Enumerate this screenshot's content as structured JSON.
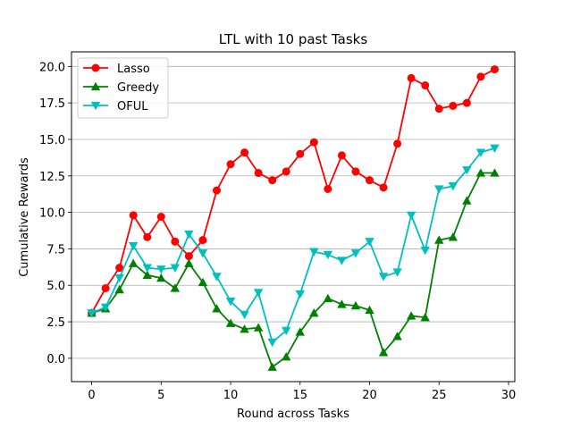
{
  "chart_data": {
    "type": "line",
    "title": "LTL with 10 past Tasks",
    "xlabel": "Round across Tasks",
    "ylabel": "Cumulative Rewards",
    "xlim": [
      -1.45,
      30.45
    ],
    "ylim": [
      -1.6,
      21.0
    ],
    "xticks": [
      0,
      5,
      10,
      15,
      20,
      25,
      30
    ],
    "yticks": [
      0.0,
      2.5,
      5.0,
      7.5,
      10.0,
      12.5,
      15.0,
      17.5,
      20.0
    ],
    "ytick_labels": [
      "0.0",
      "2.5",
      "5.0",
      "7.5",
      "10.0",
      "12.5",
      "15.0",
      "17.5",
      "20.0"
    ],
    "grid": "horizontal",
    "legend_position": "upper-left",
    "x": [
      0,
      1,
      2,
      3,
      4,
      5,
      6,
      7,
      8,
      9,
      10,
      11,
      12,
      13,
      14,
      15,
      16,
      17,
      18,
      19,
      20,
      21,
      22,
      23,
      24,
      25,
      26,
      27,
      28,
      29
    ],
    "series": [
      {
        "name": "Lasso",
        "color": "#ff0000",
        "marker": "circle",
        "values": [
          3.1,
          4.8,
          6.2,
          9.8,
          8.3,
          9.7,
          8.0,
          7.0,
          8.1,
          11.5,
          13.3,
          14.1,
          12.7,
          12.2,
          12.8,
          14.0,
          14.8,
          11.6,
          13.9,
          12.8,
          12.2,
          11.7,
          14.7,
          19.2,
          18.7,
          17.1,
          17.3,
          17.5,
          19.3,
          19.8
        ]
      },
      {
        "name": "Greedy",
        "color": "#008000",
        "marker": "triangle-up",
        "values": [
          3.1,
          3.4,
          4.7,
          6.5,
          5.7,
          5.5,
          4.8,
          6.5,
          5.2,
          3.4,
          2.4,
          2.0,
          2.1,
          -0.6,
          0.1,
          1.8,
          3.1,
          4.1,
          3.7,
          3.6,
          3.3,
          0.4,
          1.5,
          2.9,
          2.8,
          8.1,
          8.3,
          10.8,
          12.7,
          12.7
        ]
      },
      {
        "name": "OFUL",
        "color": "#00bfbf",
        "marker": "triangle-down",
        "values": [
          3.1,
          3.5,
          5.5,
          7.7,
          6.2,
          6.1,
          6.2,
          8.5,
          7.2,
          5.6,
          3.9,
          3.0,
          4.5,
          1.1,
          1.9,
          4.4,
          7.3,
          7.1,
          6.7,
          7.2,
          8.0,
          5.6,
          5.9,
          9.8,
          7.4,
          11.6,
          11.8,
          12.9,
          14.1,
          14.4
        ]
      }
    ]
  }
}
